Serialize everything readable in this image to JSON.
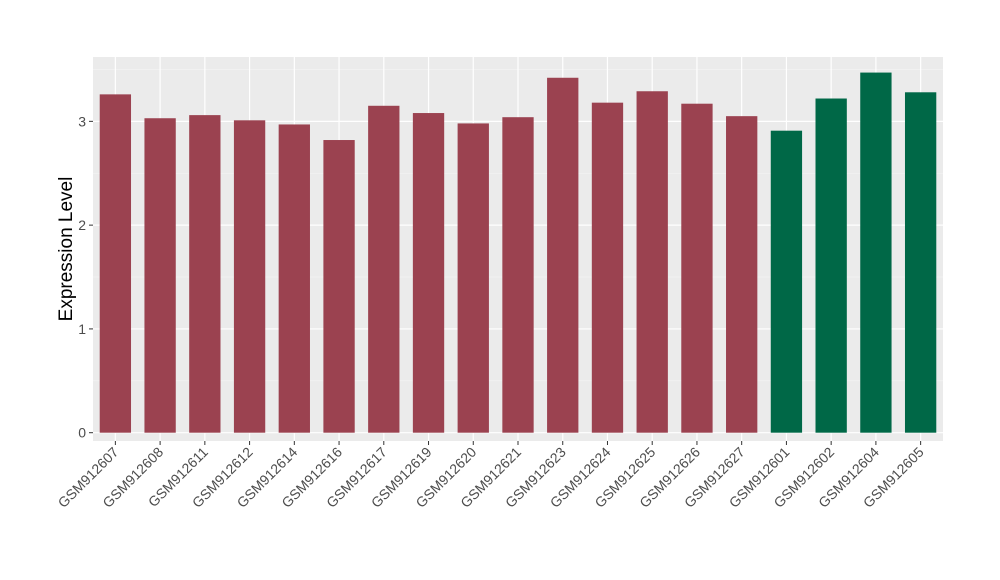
{
  "chart_data": {
    "type": "bar",
    "title": "",
    "xlabel": "",
    "ylabel": "Expression Level",
    "ylim": [
      -0.08,
      3.62
    ],
    "yticks": [
      0,
      1,
      2,
      3
    ],
    "grid": true,
    "legend": "none",
    "background": "#ebebeb",
    "categories": [
      "GSM912607",
      "GSM912608",
      "GSM912611",
      "GSM912612",
      "GSM912614",
      "GSM912616",
      "GSM912617",
      "GSM912619",
      "GSM912620",
      "GSM912621",
      "GSM912623",
      "GSM912624",
      "GSM912625",
      "GSM912626",
      "GSM912627",
      "GSM912601",
      "GSM912602",
      "GSM912604",
      "GSM912605"
    ],
    "values": [
      3.26,
      3.03,
      3.06,
      3.01,
      2.97,
      2.82,
      3.15,
      3.08,
      2.98,
      3.04,
      3.42,
      3.18,
      3.29,
      3.17,
      3.05,
      2.91,
      3.22,
      3.47,
      3.28
    ],
    "colors": [
      "#9b4250",
      "#9b4250",
      "#9b4250",
      "#9b4250",
      "#9b4250",
      "#9b4250",
      "#9b4250",
      "#9b4250",
      "#9b4250",
      "#9b4250",
      "#9b4250",
      "#9b4250",
      "#9b4250",
      "#9b4250",
      "#9b4250",
      "#006847",
      "#006847",
      "#006847",
      "#006847"
    ]
  }
}
